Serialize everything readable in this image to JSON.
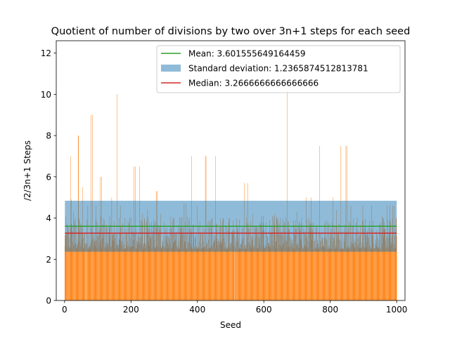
{
  "chart_data": {
    "type": "bar",
    "title": "Quotient of number of divisions by two over 3n+1 steps for each seed",
    "xlabel": "Seed",
    "ylabel": "/2/3n+1 Steps",
    "xlim": [
      -25,
      1025
    ],
    "ylim": [
      0,
      12.6
    ],
    "xticks": [
      0,
      200,
      400,
      600,
      800,
      1000
    ],
    "yticks": [
      0,
      2,
      4,
      6,
      8,
      10,
      12
    ],
    "bar_color": "#ff7f0e",
    "legend_position": "upper-right",
    "legend": [
      {
        "label": "Mean: 3.601555649164459",
        "kind": "line",
        "color": "#2ca02c"
      },
      {
        "label": "Standard deviation: 1.2365874512813781",
        "kind": "band",
        "color": "#1f77b4"
      },
      {
        "label": "Median: 3.2666666666666666",
        "kind": "line",
        "color": "#d62728"
      }
    ],
    "mean": 3.601555649164459,
    "std": 1.2365874512813781,
    "median": 3.2666666666666666,
    "seed_range": [
      1,
      1000
    ],
    "gap_seeds": [
      64,
      512
    ],
    "spikes": [
      {
        "x": 18,
        "y": 7.0
      },
      {
        "x": 21,
        "y": 4.9
      },
      {
        "x": 27,
        "y": 4.3
      },
      {
        "x": 32,
        "y": 4.0
      },
      {
        "x": 41,
        "y": 8.0
      },
      {
        "x": 42,
        "y": 8.0
      },
      {
        "x": 45,
        "y": 3.9
      },
      {
        "x": 54,
        "y": 5.5
      },
      {
        "x": 70,
        "y": 4.6
      },
      {
        "x": 80,
        "y": 9.0
      },
      {
        "x": 84,
        "y": 9.0
      },
      {
        "x": 95,
        "y": 4.6
      },
      {
        "x": 108,
        "y": 6.0
      },
      {
        "x": 111,
        "y": 6.0
      },
      {
        "x": 117,
        "y": 4.0
      },
      {
        "x": 142,
        "y": 5.0
      },
      {
        "x": 158,
        "y": 10.0
      },
      {
        "x": 168,
        "y": 4.6
      },
      {
        "x": 182,
        "y": 4.0
      },
      {
        "x": 209,
        "y": 6.5
      },
      {
        "x": 213,
        "y": 6.5
      },
      {
        "x": 226,
        "y": 6.5
      },
      {
        "x": 235,
        "y": 4.2
      },
      {
        "x": 250,
        "y": 4.4
      },
      {
        "x": 276,
        "y": 5.3
      },
      {
        "x": 279,
        "y": 5.3
      },
      {
        "x": 290,
        "y": 4.2
      },
      {
        "x": 327,
        "y": 4.0
      },
      {
        "x": 360,
        "y": 4.7
      },
      {
        "x": 366,
        "y": 4.7
      },
      {
        "x": 383,
        "y": 7.0
      },
      {
        "x": 400,
        "y": 4.6
      },
      {
        "x": 424,
        "y": 7.0
      },
      {
        "x": 426,
        "y": 7.0
      },
      {
        "x": 443,
        "y": 4.0
      },
      {
        "x": 454,
        "y": 7.0
      },
      {
        "x": 495,
        "y": 4.0
      },
      {
        "x": 541,
        "y": 5.7
      },
      {
        "x": 551,
        "y": 5.7
      },
      {
        "x": 566,
        "y": 4.2
      },
      {
        "x": 593,
        "y": 4.1
      },
      {
        "x": 626,
        "y": 4.1
      },
      {
        "x": 633,
        "y": 4.2
      },
      {
        "x": 671,
        "y": 10.2
      },
      {
        "x": 700,
        "y": 4.3
      },
      {
        "x": 728,
        "y": 5.0
      },
      {
        "x": 742,
        "y": 5.0
      },
      {
        "x": 768,
        "y": 7.5
      },
      {
        "x": 808,
        "y": 5.0
      },
      {
        "x": 819,
        "y": 4.4
      },
      {
        "x": 832,
        "y": 7.5
      },
      {
        "x": 847,
        "y": 7.5
      },
      {
        "x": 850,
        "y": 7.5
      },
      {
        "x": 862,
        "y": 4.6
      },
      {
        "x": 898,
        "y": 4.6
      },
      {
        "x": 924,
        "y": 4.6
      },
      {
        "x": 971,
        "y": 4.6
      },
      {
        "x": 979,
        "y": 4.6
      },
      {
        "x": 988,
        "y": 4.6
      },
      {
        "x": 993,
        "y": 4.6
      }
    ]
  }
}
